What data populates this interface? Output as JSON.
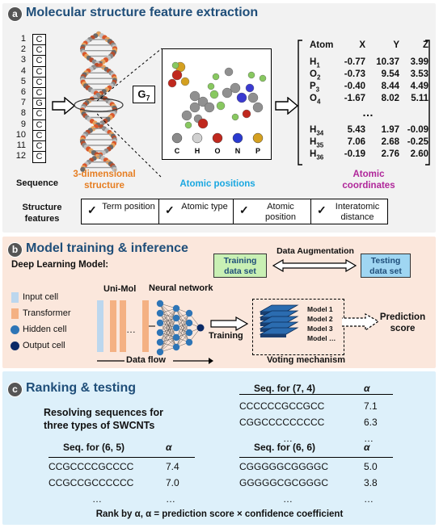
{
  "panel_a": {
    "badge": "a",
    "title": "Molecular structure feature extraction",
    "sequence": [
      "C",
      "C",
      "C",
      "C",
      "C",
      "C",
      "G",
      "C",
      "C",
      "C",
      "C",
      "C"
    ],
    "sequence_label": "Sequence",
    "stage_labels": {
      "structure_3d": "3-dimensional structure",
      "atomic_positions": "Atomic positions",
      "atomic_coordinates": "Atomic coordinates"
    },
    "g7_label": "G7",
    "element_legend": [
      "C",
      "H",
      "O",
      "N",
      "P"
    ],
    "coord_table": {
      "headers": [
        "Atom",
        "X",
        "Y",
        "Z"
      ],
      "rows": [
        {
          "atom": "H1",
          "x": "-0.77",
          "y": "10.37",
          "z": "3.99"
        },
        {
          "atom": "O2",
          "x": "-0.73",
          "y": "9.54",
          "z": "3.53"
        },
        {
          "atom": "P3",
          "x": "-0.40",
          "y": "8.44",
          "z": "4.49"
        },
        {
          "atom": "O4",
          "x": "-1.67",
          "y": "8.02",
          "z": "5.11"
        },
        {
          "atom": "H34",
          "x": "5.43",
          "y": "1.97",
          "z": "-0.09"
        },
        {
          "atom": "H35",
          "x": "7.06",
          "y": "2.68",
          "z": "-0.25"
        },
        {
          "atom": "H36",
          "x": "-0.19",
          "y": "2.76",
          "z": "2.60"
        }
      ],
      "ellipsis": "…"
    },
    "structure_features_label": "Structure features",
    "features": [
      "Term position",
      "Atomic type",
      "Atomic position",
      "Interatomic distance"
    ],
    "check": "✓"
  },
  "panel_b": {
    "badge": "b",
    "title": "Model training & inference",
    "dl_model_label": "Deep Learning Model:",
    "training_set": "Training data set",
    "testing_set": "Testing data set",
    "augmentation": "Data Augmentation",
    "legend": [
      "Input cell",
      "Transformer",
      "Hidden cell",
      "Output cell"
    ],
    "unimol": "Uni-Mol",
    "neural_network": "Neural network",
    "dots": "…",
    "data_flow": "Data flow",
    "training": "Training",
    "models": [
      "Model 1",
      "Model 2",
      "Model 3",
      "Model …"
    ],
    "voting": "Voting mechanism",
    "prediction": "Prediction score"
  },
  "panel_c": {
    "badge": "c",
    "title": "Ranking & testing",
    "resolving": "Resolving sequences for three types of SWCNTs",
    "tables": [
      {
        "header": "Seq. for (7, 4)",
        "alpha": "α",
        "rows": [
          [
            "CCCCCCGCCGCC",
            "7.1"
          ],
          [
            "CGGCCCCCCCCC",
            "6.3"
          ],
          [
            "…",
            "…"
          ]
        ]
      },
      {
        "header": "Seq. for (6, 5)",
        "alpha": "α",
        "rows": [
          [
            "CCGCCCCGCCCC",
            "7.4"
          ],
          [
            "CCGCCGCCCCCC",
            "7.0"
          ],
          [
            "…",
            "…"
          ]
        ]
      },
      {
        "header": "Seq. for (6, 6)",
        "alpha": "α",
        "rows": [
          [
            "CGGGGGCGGGGC",
            "5.0"
          ],
          [
            "GGGGGCGCGGGC",
            "3.8"
          ],
          [
            "…",
            "…"
          ]
        ]
      }
    ],
    "footer": "Rank by α, α = prediction score × confidence coefficient"
  },
  "colors": {
    "title": "#1f4e79",
    "orange": "#e67e22",
    "cyan": "#1aa7e0",
    "magenta": "#b0279a",
    "green_box": "#c9f0b4",
    "blue_box": "#9fd6f2",
    "input_cell": "#bcd7ee",
    "transformer": "#f4b183",
    "hidden_cell": "#2e75b6",
    "output_cell": "#0b2a66"
  }
}
